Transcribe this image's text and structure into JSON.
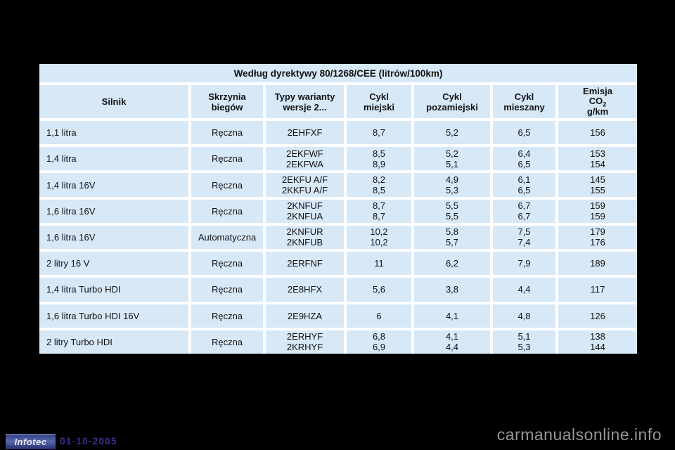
{
  "colors": {
    "page_bg": "#000000",
    "cell_bg": "#d7e8f7",
    "grid_line": "#ffffff",
    "date_text": "#37308f",
    "watermark_text": "#979797",
    "logo_bg": "#3c478c"
  },
  "table": {
    "title": "Według dyrektywy 80/1268/CEE (litrów/100km)",
    "headers": {
      "engine": "Silnik",
      "gearbox": [
        "Skrzynia",
        "biegów"
      ],
      "types": [
        "Typy warianty",
        "wersje 2..."
      ],
      "urban": [
        "Cykl",
        "miejski"
      ],
      "extra_urban": [
        "Cykl",
        "pozamiejski"
      ],
      "mixed": [
        "Cykl",
        "mieszany"
      ],
      "emission_line1": "Emisja",
      "emission_co": "CO",
      "emission_sub": "2",
      "emission_line3": "g/km"
    },
    "rows": [
      {
        "engine": "1,1 litra",
        "gearbox": "Ręczna",
        "types": [
          "2EHFXF"
        ],
        "urban": [
          "8,7"
        ],
        "extra_urban": [
          "5,2"
        ],
        "mixed": [
          "6,5"
        ],
        "co2": [
          "156"
        ]
      },
      {
        "engine": "1,4 litra",
        "gearbox": "Ręczna",
        "types": [
          "2EKFWF",
          "2EKFWA"
        ],
        "urban": [
          "8,5",
          "8,9"
        ],
        "extra_urban": [
          "5,2",
          "5,1"
        ],
        "mixed": [
          "6,4",
          "6,5"
        ],
        "co2": [
          "153",
          "154"
        ]
      },
      {
        "engine": "1,4 litra 16V",
        "gearbox": "Ręczna",
        "types": [
          "2EKFU A/F",
          "2KKFU A/F"
        ],
        "urban": [
          "8,2",
          "8,5"
        ],
        "extra_urban": [
          "4,9",
          "5,3"
        ],
        "mixed": [
          "6,1",
          "6,5"
        ],
        "co2": [
          "145",
          "155"
        ]
      },
      {
        "engine": "1,6 litra 16V",
        "gearbox": "Ręczna",
        "types": [
          "2KNFUF",
          "2KNFUA"
        ],
        "urban": [
          "8,7",
          "8,7"
        ],
        "extra_urban": [
          "5,5",
          "5,5"
        ],
        "mixed": [
          "6,7",
          "6,7"
        ],
        "co2": [
          "159",
          "159"
        ]
      },
      {
        "engine": "1,6 litra 16V",
        "gearbox": "Automatyczna",
        "types": [
          "2KNFUR",
          "2KNFUB"
        ],
        "urban": [
          "10,2",
          "10,2"
        ],
        "extra_urban": [
          "5,8",
          "5,7"
        ],
        "mixed": [
          "7,5",
          "7,4"
        ],
        "co2": [
          "179",
          "176"
        ]
      },
      {
        "engine": "2 litry 16 V",
        "gearbox": "Ręczna",
        "types": [
          "2ERFNF"
        ],
        "urban": [
          "11"
        ],
        "extra_urban": [
          "6,2"
        ],
        "mixed": [
          "7,9"
        ],
        "co2": [
          "189"
        ]
      },
      {
        "engine": "1,4 litra Turbo HDI",
        "gearbox": "Ręczna",
        "types": [
          "2E8HFX"
        ],
        "urban": [
          "5,6"
        ],
        "extra_urban": [
          "3,8"
        ],
        "mixed": [
          "4,4"
        ],
        "co2": [
          "117"
        ]
      },
      {
        "engine": "1,6 litra Turbo HDI 16V",
        "gearbox": "Ręczna",
        "types": [
          "2E9HZA"
        ],
        "urban": [
          "6"
        ],
        "extra_urban": [
          "4,1"
        ],
        "mixed": [
          "4,8"
        ],
        "co2": [
          "126"
        ]
      },
      {
        "engine": "2 litry Turbo HDI",
        "gearbox": "Ręczna",
        "types": [
          "2ERHYF",
          "2KRHYF"
        ],
        "urban": [
          "6,8",
          "6,9"
        ],
        "extra_urban": [
          "4,1",
          "4,4"
        ],
        "mixed": [
          "5,1",
          "5,3"
        ],
        "co2": [
          "138",
          "144"
        ]
      }
    ]
  },
  "footer": {
    "logo": "Infotec",
    "date": "01-10-2005",
    "watermark": "carmanualsonline.info"
  }
}
